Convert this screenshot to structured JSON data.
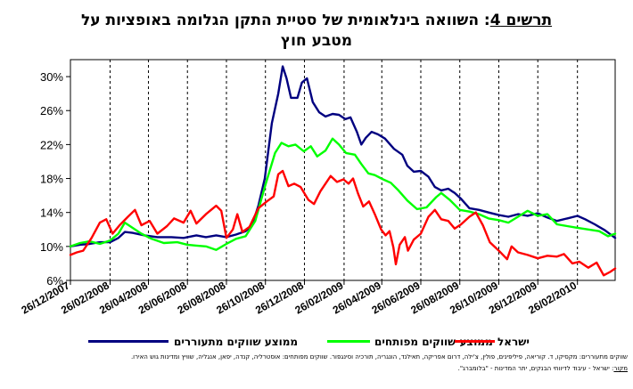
{
  "title": {
    "prefix": "תרשים 4",
    "line1_rest": ": השוואה בינלאומית של סטיית התקן הגלומה באופציות על",
    "line2": "מטבע חוץ"
  },
  "legend": [
    {
      "label": "ממוצע שווקים מתעוררים",
      "color": "#000080"
    },
    {
      "label": "ממוצע שווקים מפותחים",
      "color": "#00ff00"
    },
    {
      "label": "ישראל",
      "color": "#ff0000"
    }
  ],
  "notes": {
    "line1": "שווקים מתעוררים: מקסיקו, ד. קוריאה, פיליפינים, פולין, צ'ילה, דרום אפריקה, תאילנד, הונגריה, תורכיה וסינגפור. שווקים מפותחים: אוסטרליה, קנדה, יפאן, אנגליה, שוויץ ומדינות גוש האירו.",
    "source_label": "מקור",
    "source_text": ": ישראל - עיבוד לדיווחי הבנקים, יתר המדינות - \"בלומברג\"."
  },
  "chart_data": {
    "type": "line",
    "title": "תרשים 4: השוואה בינלאומית של סטיית התקן הגלומה באופציות על מטבע חוץ",
    "xlabel": "",
    "ylabel": "",
    "ylim": [
      6,
      32
    ],
    "y_ticks": [
      6,
      10,
      14,
      18,
      22,
      26,
      30
    ],
    "y_tick_labels": [
      "6%",
      "10%",
      "14%",
      "18%",
      "22%",
      "26%",
      "30%"
    ],
    "x_range": [
      "2007-12-26",
      "2010-04-26"
    ],
    "x_ticks": [
      "2007-12-26",
      "2008-02-26",
      "2008-04-26",
      "2008-06-26",
      "2008-08-26",
      "2008-10-26",
      "2008-12-26",
      "2009-02-26",
      "2009-04-26",
      "2009-06-26",
      "2009-08-26",
      "2009-10-26",
      "2009-12-26",
      "2010-02-26"
    ],
    "x_tick_labels": [
      "26/12/2007",
      "26/02/2008",
      "26/04/2008",
      "26/06/2008",
      "26/08/2008",
      "26/10/2008",
      "26/12/2008",
      "26/02/2009",
      "26/04/2009",
      "26/06/2009",
      "26/08/2009",
      "26/10/2009",
      "26/12/2009",
      "26/02/2010"
    ],
    "grid": "vertical dashed at x ticks",
    "legend_position": "bottom",
    "series": [
      {
        "name": "ממוצע שווקים מתעוררים",
        "color": "#000080",
        "points": [
          [
            "2007-12-26",
            10.0
          ],
          [
            "2008-01-10",
            10.2
          ],
          [
            "2008-01-25",
            10.3
          ],
          [
            "2008-02-10",
            10.5
          ],
          [
            "2008-02-26",
            10.5
          ],
          [
            "2008-03-10",
            11.0
          ],
          [
            "2008-03-20",
            11.7
          ],
          [
            "2008-04-01",
            11.6
          ],
          [
            "2008-04-20",
            11.3
          ],
          [
            "2008-05-10",
            11.1
          ],
          [
            "2008-06-01",
            11.1
          ],
          [
            "2008-06-20",
            11.0
          ],
          [
            "2008-07-10",
            11.3
          ],
          [
            "2008-07-25",
            11.1
          ],
          [
            "2008-08-10",
            11.3
          ],
          [
            "2008-08-26",
            11.1
          ],
          [
            "2008-09-10",
            11.4
          ],
          [
            "2008-09-25",
            11.8
          ],
          [
            "2008-10-05",
            12.5
          ],
          [
            "2008-10-15",
            14.8
          ],
          [
            "2008-10-25",
            18.0
          ],
          [
            "2008-11-05",
            24.5
          ],
          [
            "2008-11-15",
            28.0
          ],
          [
            "2008-11-22",
            31.2
          ],
          [
            "2008-11-28",
            29.8
          ],
          [
            "2008-12-05",
            27.5
          ],
          [
            "2008-12-15",
            27.5
          ],
          [
            "2008-12-22",
            29.3
          ],
          [
            "2008-12-30",
            29.8
          ],
          [
            "2009-01-08",
            27.0
          ],
          [
            "2009-01-18",
            25.8
          ],
          [
            "2009-01-28",
            25.3
          ],
          [
            "2009-02-08",
            25.6
          ],
          [
            "2009-02-18",
            25.5
          ],
          [
            "2009-02-28",
            25.0
          ],
          [
            "2009-03-08",
            25.2
          ],
          [
            "2009-03-18",
            23.5
          ],
          [
            "2009-03-25",
            22.0
          ],
          [
            "2009-04-01",
            22.8
          ],
          [
            "2009-04-10",
            23.5
          ],
          [
            "2009-04-20",
            23.2
          ],
          [
            "2009-05-01",
            22.7
          ],
          [
            "2009-05-15",
            21.5
          ],
          [
            "2009-05-28",
            20.8
          ],
          [
            "2009-06-05",
            19.5
          ],
          [
            "2009-06-15",
            18.8
          ],
          [
            "2009-06-26",
            18.9
          ],
          [
            "2009-07-08",
            18.2
          ],
          [
            "2009-07-18",
            17.0
          ],
          [
            "2009-07-28",
            16.6
          ],
          [
            "2009-08-08",
            16.8
          ],
          [
            "2009-08-18",
            16.3
          ],
          [
            "2009-08-28",
            15.6
          ],
          [
            "2009-09-10",
            14.5
          ],
          [
            "2009-09-25",
            14.3
          ],
          [
            "2009-10-10",
            14.0
          ],
          [
            "2009-10-26",
            13.7
          ],
          [
            "2009-11-10",
            13.5
          ],
          [
            "2009-11-25",
            13.8
          ],
          [
            "2009-12-10",
            13.6
          ],
          [
            "2009-12-26",
            13.9
          ],
          [
            "2010-01-10",
            13.4
          ],
          [
            "2010-01-25",
            13.0
          ],
          [
            "2010-02-10",
            13.3
          ],
          [
            "2010-02-26",
            13.6
          ],
          [
            "2010-03-10",
            13.2
          ],
          [
            "2010-03-25",
            12.6
          ],
          [
            "2010-04-10",
            11.9
          ],
          [
            "2010-04-26",
            11.0
          ]
        ]
      },
      {
        "name": "ממוצע שווקים מפותחים",
        "color": "#00ff00",
        "points": [
          [
            "2007-12-26",
            10.0
          ],
          [
            "2008-01-10",
            10.4
          ],
          [
            "2008-01-25",
            10.6
          ],
          [
            "2008-02-10",
            10.3
          ],
          [
            "2008-02-26",
            10.7
          ],
          [
            "2008-03-10",
            11.5
          ],
          [
            "2008-03-20",
            12.8
          ],
          [
            "2008-04-01",
            12.2
          ],
          [
            "2008-04-15",
            11.5
          ],
          [
            "2008-05-01",
            10.9
          ],
          [
            "2008-05-20",
            10.4
          ],
          [
            "2008-06-10",
            10.5
          ],
          [
            "2008-06-26",
            10.2
          ],
          [
            "2008-07-10",
            10.1
          ],
          [
            "2008-07-25",
            10.0
          ],
          [
            "2008-08-10",
            9.6
          ],
          [
            "2008-08-26",
            10.3
          ],
          [
            "2008-09-10",
            10.9
          ],
          [
            "2008-09-25",
            11.2
          ],
          [
            "2008-10-10",
            13.0
          ],
          [
            "2008-10-25",
            17.0
          ],
          [
            "2008-11-10",
            21.0
          ],
          [
            "2008-11-20",
            22.2
          ],
          [
            "2008-12-01",
            21.8
          ],
          [
            "2008-12-12",
            22.0
          ],
          [
            "2008-12-25",
            21.2
          ],
          [
            "2009-01-05",
            21.8
          ],
          [
            "2009-01-15",
            20.6
          ],
          [
            "2009-01-28",
            21.3
          ],
          [
            "2009-02-08",
            22.7
          ],
          [
            "2009-02-18",
            22.0
          ],
          [
            "2009-03-01",
            21.0
          ],
          [
            "2009-03-15",
            20.8
          ],
          [
            "2009-03-25",
            19.7
          ],
          [
            "2009-04-05",
            18.6
          ],
          [
            "2009-04-15",
            18.4
          ],
          [
            "2009-04-28",
            17.9
          ],
          [
            "2009-05-10",
            17.5
          ],
          [
            "2009-05-22",
            16.6
          ],
          [
            "2009-06-05",
            15.4
          ],
          [
            "2009-06-20",
            14.4
          ],
          [
            "2009-07-05",
            14.6
          ],
          [
            "2009-07-20",
            15.8
          ],
          [
            "2009-07-28",
            16.3
          ],
          [
            "2009-08-10",
            15.5
          ],
          [
            "2009-08-26",
            14.3
          ],
          [
            "2009-09-10",
            14.1
          ],
          [
            "2009-09-25",
            13.8
          ],
          [
            "2009-10-10",
            13.3
          ],
          [
            "2009-10-26",
            13.1
          ],
          [
            "2009-11-10",
            12.8
          ],
          [
            "2009-11-25",
            13.5
          ],
          [
            "2009-12-10",
            14.2
          ],
          [
            "2009-12-26",
            13.6
          ],
          [
            "2010-01-10",
            13.8
          ],
          [
            "2010-01-25",
            12.6
          ],
          [
            "2010-02-10",
            12.4
          ],
          [
            "2010-02-26",
            12.2
          ],
          [
            "2010-03-15",
            12.0
          ],
          [
            "2010-04-01",
            11.8
          ],
          [
            "2010-04-15",
            11.2
          ],
          [
            "2010-04-26",
            11.5
          ]
        ]
      },
      {
        "name": "ישראל",
        "color": "#ff0000",
        "points": [
          [
            "2007-12-26",
            9.0
          ],
          [
            "2008-01-05",
            9.3
          ],
          [
            "2008-01-15",
            9.5
          ],
          [
            "2008-01-28",
            11.0
          ],
          [
            "2008-02-10",
            12.8
          ],
          [
            "2008-02-20",
            13.2
          ],
          [
            "2008-03-01",
            11.5
          ],
          [
            "2008-03-12",
            12.5
          ],
          [
            "2008-03-25",
            13.5
          ],
          [
            "2008-04-05",
            14.3
          ],
          [
            "2008-04-15",
            12.5
          ],
          [
            "2008-04-28",
            13.0
          ],
          [
            "2008-05-10",
            11.5
          ],
          [
            "2008-05-25",
            12.4
          ],
          [
            "2008-06-05",
            13.3
          ],
          [
            "2008-06-20",
            12.8
          ],
          [
            "2008-07-01",
            14.2
          ],
          [
            "2008-07-10",
            12.7
          ],
          [
            "2008-07-25",
            13.8
          ],
          [
            "2008-08-10",
            14.8
          ],
          [
            "2008-08-18",
            14.2
          ],
          [
            "2008-08-26",
            11.0
          ],
          [
            "2008-09-05",
            12.0
          ],
          [
            "2008-09-12",
            13.8
          ],
          [
            "2008-09-20",
            11.7
          ],
          [
            "2008-10-01",
            12.3
          ],
          [
            "2008-10-15",
            14.5
          ],
          [
            "2008-10-28",
            15.3
          ],
          [
            "2008-11-08",
            15.9
          ],
          [
            "2008-11-15",
            18.5
          ],
          [
            "2008-11-22",
            18.9
          ],
          [
            "2008-12-01",
            17.1
          ],
          [
            "2008-12-10",
            17.4
          ],
          [
            "2008-12-20",
            17.0
          ],
          [
            "2009-01-01",
            15.5
          ],
          [
            "2009-01-10",
            15.0
          ],
          [
            "2009-01-20",
            16.5
          ],
          [
            "2009-02-05",
            18.3
          ],
          [
            "2009-02-15",
            17.6
          ],
          [
            "2009-02-25",
            17.9
          ],
          [
            "2009-03-05",
            17.4
          ],
          [
            "2009-03-12",
            18.0
          ],
          [
            "2009-03-20",
            16.2
          ],
          [
            "2009-03-28",
            14.7
          ],
          [
            "2009-04-06",
            15.3
          ],
          [
            "2009-04-15",
            13.8
          ],
          [
            "2009-04-25",
            12.0
          ],
          [
            "2009-05-02",
            11.3
          ],
          [
            "2009-05-08",
            11.8
          ],
          [
            "2009-05-14",
            9.9
          ],
          [
            "2009-05-18",
            7.9
          ],
          [
            "2009-05-24",
            10.2
          ],
          [
            "2009-06-01",
            11.1
          ],
          [
            "2009-06-06",
            9.5
          ],
          [
            "2009-06-15",
            10.8
          ],
          [
            "2009-06-26",
            11.5
          ],
          [
            "2009-07-08",
            13.5
          ],
          [
            "2009-07-18",
            14.3
          ],
          [
            "2009-07-28",
            13.2
          ],
          [
            "2009-08-08",
            13.0
          ],
          [
            "2009-08-18",
            12.1
          ],
          [
            "2009-08-28",
            12.6
          ],
          [
            "2009-09-10",
            13.5
          ],
          [
            "2009-09-20",
            14.0
          ],
          [
            "2009-10-01",
            12.5
          ],
          [
            "2009-10-12",
            10.5
          ],
          [
            "2009-10-26",
            9.5
          ],
          [
            "2009-11-08",
            8.5
          ],
          [
            "2009-11-15",
            10.0
          ],
          [
            "2009-11-25",
            9.3
          ],
          [
            "2009-12-10",
            9.0
          ],
          [
            "2009-12-26",
            8.6
          ],
          [
            "2010-01-10",
            8.9
          ],
          [
            "2010-01-25",
            8.8
          ],
          [
            "2010-02-05",
            9.1
          ],
          [
            "2010-02-18",
            8.0
          ],
          [
            "2010-03-01",
            8.2
          ],
          [
            "2010-03-15",
            7.5
          ],
          [
            "2010-03-28",
            8.1
          ],
          [
            "2010-04-08",
            6.6
          ],
          [
            "2010-04-18",
            7.0
          ],
          [
            "2010-04-26",
            7.4
          ]
        ]
      }
    ]
  }
}
